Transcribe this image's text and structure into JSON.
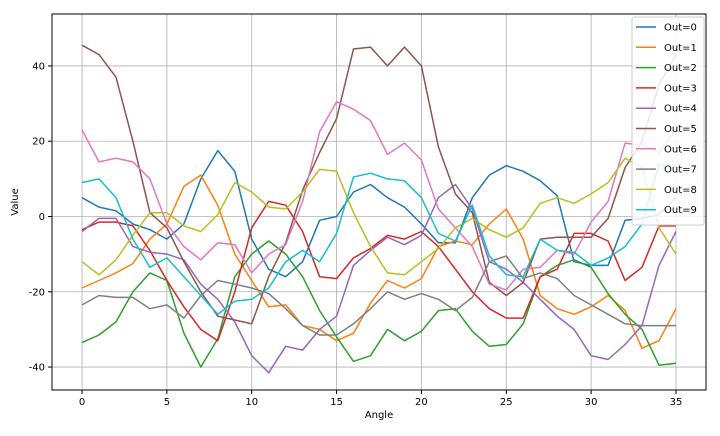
{
  "chart_data": {
    "type": "line",
    "title": "",
    "xlabel": "Angle",
    "ylabel": "Value",
    "xlim": [
      -1.77,
      36.77
    ],
    "ylim": [
      -46.1,
      53.8
    ],
    "xticks": [
      0,
      5,
      10,
      15,
      20,
      25,
      30,
      35
    ],
    "yticks": [
      -40,
      -20,
      0,
      20,
      40
    ],
    "grid": true,
    "legend_position": "top-right",
    "x": [
      0,
      1,
      2,
      3,
      4,
      5,
      6,
      7,
      8,
      9,
      10,
      11,
      12,
      13,
      14,
      15,
      16,
      17,
      18,
      19,
      20,
      21,
      22,
      23,
      24,
      25,
      26,
      27,
      28,
      29,
      30,
      31,
      32,
      33,
      34,
      35
    ],
    "series": [
      {
        "name": "Out=0",
        "color": "#1f77b4",
        "values": [
          5,
          2.5,
          1.5,
          -2,
          -3.5,
          -6,
          -2,
          10,
          17.5,
          12,
          -6,
          -14,
          -16,
          -12,
          -1,
          0,
          6.5,
          8.5,
          5,
          2.5,
          -2,
          -7,
          -7,
          5,
          11,
          13.5,
          12,
          9.5,
          5.5,
          -12,
          -13,
          -13,
          -1,
          -0.5,
          0.5,
          5
        ]
      },
      {
        "name": "Out=1",
        "color": "#ff7f0e",
        "values": [
          -19,
          -17,
          -15,
          -12.5,
          -6,
          -2,
          8,
          11,
          3,
          -10,
          -17,
          -24,
          -23.5,
          -29,
          -30,
          -33,
          -31,
          -23,
          -17,
          -19,
          -16.5,
          -8,
          -6.5,
          -7.5,
          -2,
          2,
          -6,
          -21,
          -24.5,
          -26,
          -24,
          -21,
          -25,
          -35,
          -33,
          -24.5
        ]
      },
      {
        "name": "Out=2",
        "color": "#2ca02c",
        "values": [
          -33.5,
          -31.5,
          -28,
          -20,
          -15,
          -17,
          -31,
          -40,
          -32.5,
          -16,
          -10,
          -6.5,
          -10,
          -16,
          -25,
          -32,
          -38.5,
          -37,
          -30,
          -33,
          -30.5,
          -25,
          -24.5,
          -30.5,
          -34.5,
          -34,
          -28.5,
          -16,
          -13,
          -11.5,
          -13.5,
          -20.5,
          -26,
          -30,
          -39.5,
          -39
        ]
      },
      {
        "name": "Out=3",
        "color": "#d62728",
        "values": [
          -3.5,
          -1.5,
          -1.5,
          -2.5,
          -9,
          -17,
          -24,
          -30,
          -33,
          -20,
          -3,
          4,
          3,
          -4,
          -16,
          -16.5,
          -11,
          -8.5,
          -5,
          -6,
          -4,
          -8,
          -14,
          -20,
          -24.5,
          -27,
          -27,
          -16,
          -14,
          -4.5,
          -4.5,
          -6.5,
          -17,
          -13.5,
          -2.5,
          -2.5
        ]
      },
      {
        "name": "Out=4",
        "color": "#9467bd",
        "values": [
          -4,
          -0.5,
          -0.5,
          -8,
          -9.5,
          -10,
          -11.5,
          -18,
          -22,
          -28,
          -37,
          -41.5,
          -34.5,
          -35.5,
          -30,
          -26.5,
          -13,
          -9,
          -5.5,
          -7.5,
          -5,
          5,
          8.5,
          2,
          -12,
          -14,
          -17.5,
          -22,
          -26.5,
          -30,
          -37,
          -38,
          -34,
          -29,
          -13,
          -4
        ]
      },
      {
        "name": "Out=5",
        "color": "#8c564b",
        "values": [
          45.5,
          43,
          37,
          20,
          1,
          -3,
          -12,
          -20,
          -26.5,
          -27.5,
          -28.5,
          -16,
          -7,
          7,
          17,
          26,
          44.5,
          45,
          40,
          45,
          40,
          18.5,
          6,
          1,
          -17.5,
          -21,
          -17.5,
          -6,
          -5.5,
          -5.5,
          -5.5,
          -0.5,
          13,
          20,
          35,
          43
        ]
      },
      {
        "name": "Out=6",
        "color": "#e377c2",
        "values": [
          23,
          14.5,
          15.5,
          14.5,
          10,
          -2,
          -8,
          -11.5,
          -7,
          -7.5,
          -15,
          -10,
          -7.5,
          4,
          22.5,
          30.5,
          28.5,
          25.5,
          16.5,
          19.5,
          15,
          2,
          -3,
          -8,
          -18,
          -19.5,
          -14,
          -13.5,
          -9,
          -10,
          -1.5,
          4,
          19.5,
          19,
          17,
          23
        ]
      },
      {
        "name": "Out=7",
        "color": "#7f7f7f",
        "values": [
          -23.5,
          -21,
          -21.5,
          -21.5,
          -24.5,
          -23.5,
          -27,
          -21,
          -17,
          -18,
          -19,
          -20.5,
          -24.5,
          -29,
          -31.5,
          -31.5,
          -28.5,
          -24.5,
          -20,
          -22,
          -20.5,
          -22,
          -25,
          -21.5,
          -12,
          -10.5,
          -16.5,
          -15,
          -16.5,
          -21,
          -23.5,
          -26,
          -28.5,
          -29,
          -29,
          -29
        ]
      },
      {
        "name": "Out=8",
        "color": "#bcbd22",
        "values": [
          -12,
          -15.5,
          -11.5,
          -5,
          1,
          1,
          -2.5,
          -4,
          0.5,
          9,
          6.5,
          2.5,
          2,
          6.5,
          12.5,
          12,
          1,
          -8,
          -15,
          -15.5,
          -12,
          -8.5,
          -3,
          -0.5,
          -3.5,
          -5.5,
          -3,
          3.5,
          5,
          3.5,
          6,
          9,
          15.5,
          13,
          -3,
          -10
        ]
      },
      {
        "name": "Out=9",
        "color": "#17becf",
        "values": [
          9,
          10,
          5,
          -6,
          -13.5,
          -11,
          -16,
          -21,
          -26,
          -22.5,
          -22,
          -19,
          -12,
          -9,
          -12,
          -4.5,
          10.5,
          11.5,
          10,
          9.5,
          5,
          -4.5,
          -6.5,
          3,
          -10.5,
          -15.5,
          -16,
          -6,
          -9,
          -9.5,
          -13,
          -11,
          -8,
          -2,
          14,
          13
        ]
      }
    ]
  }
}
